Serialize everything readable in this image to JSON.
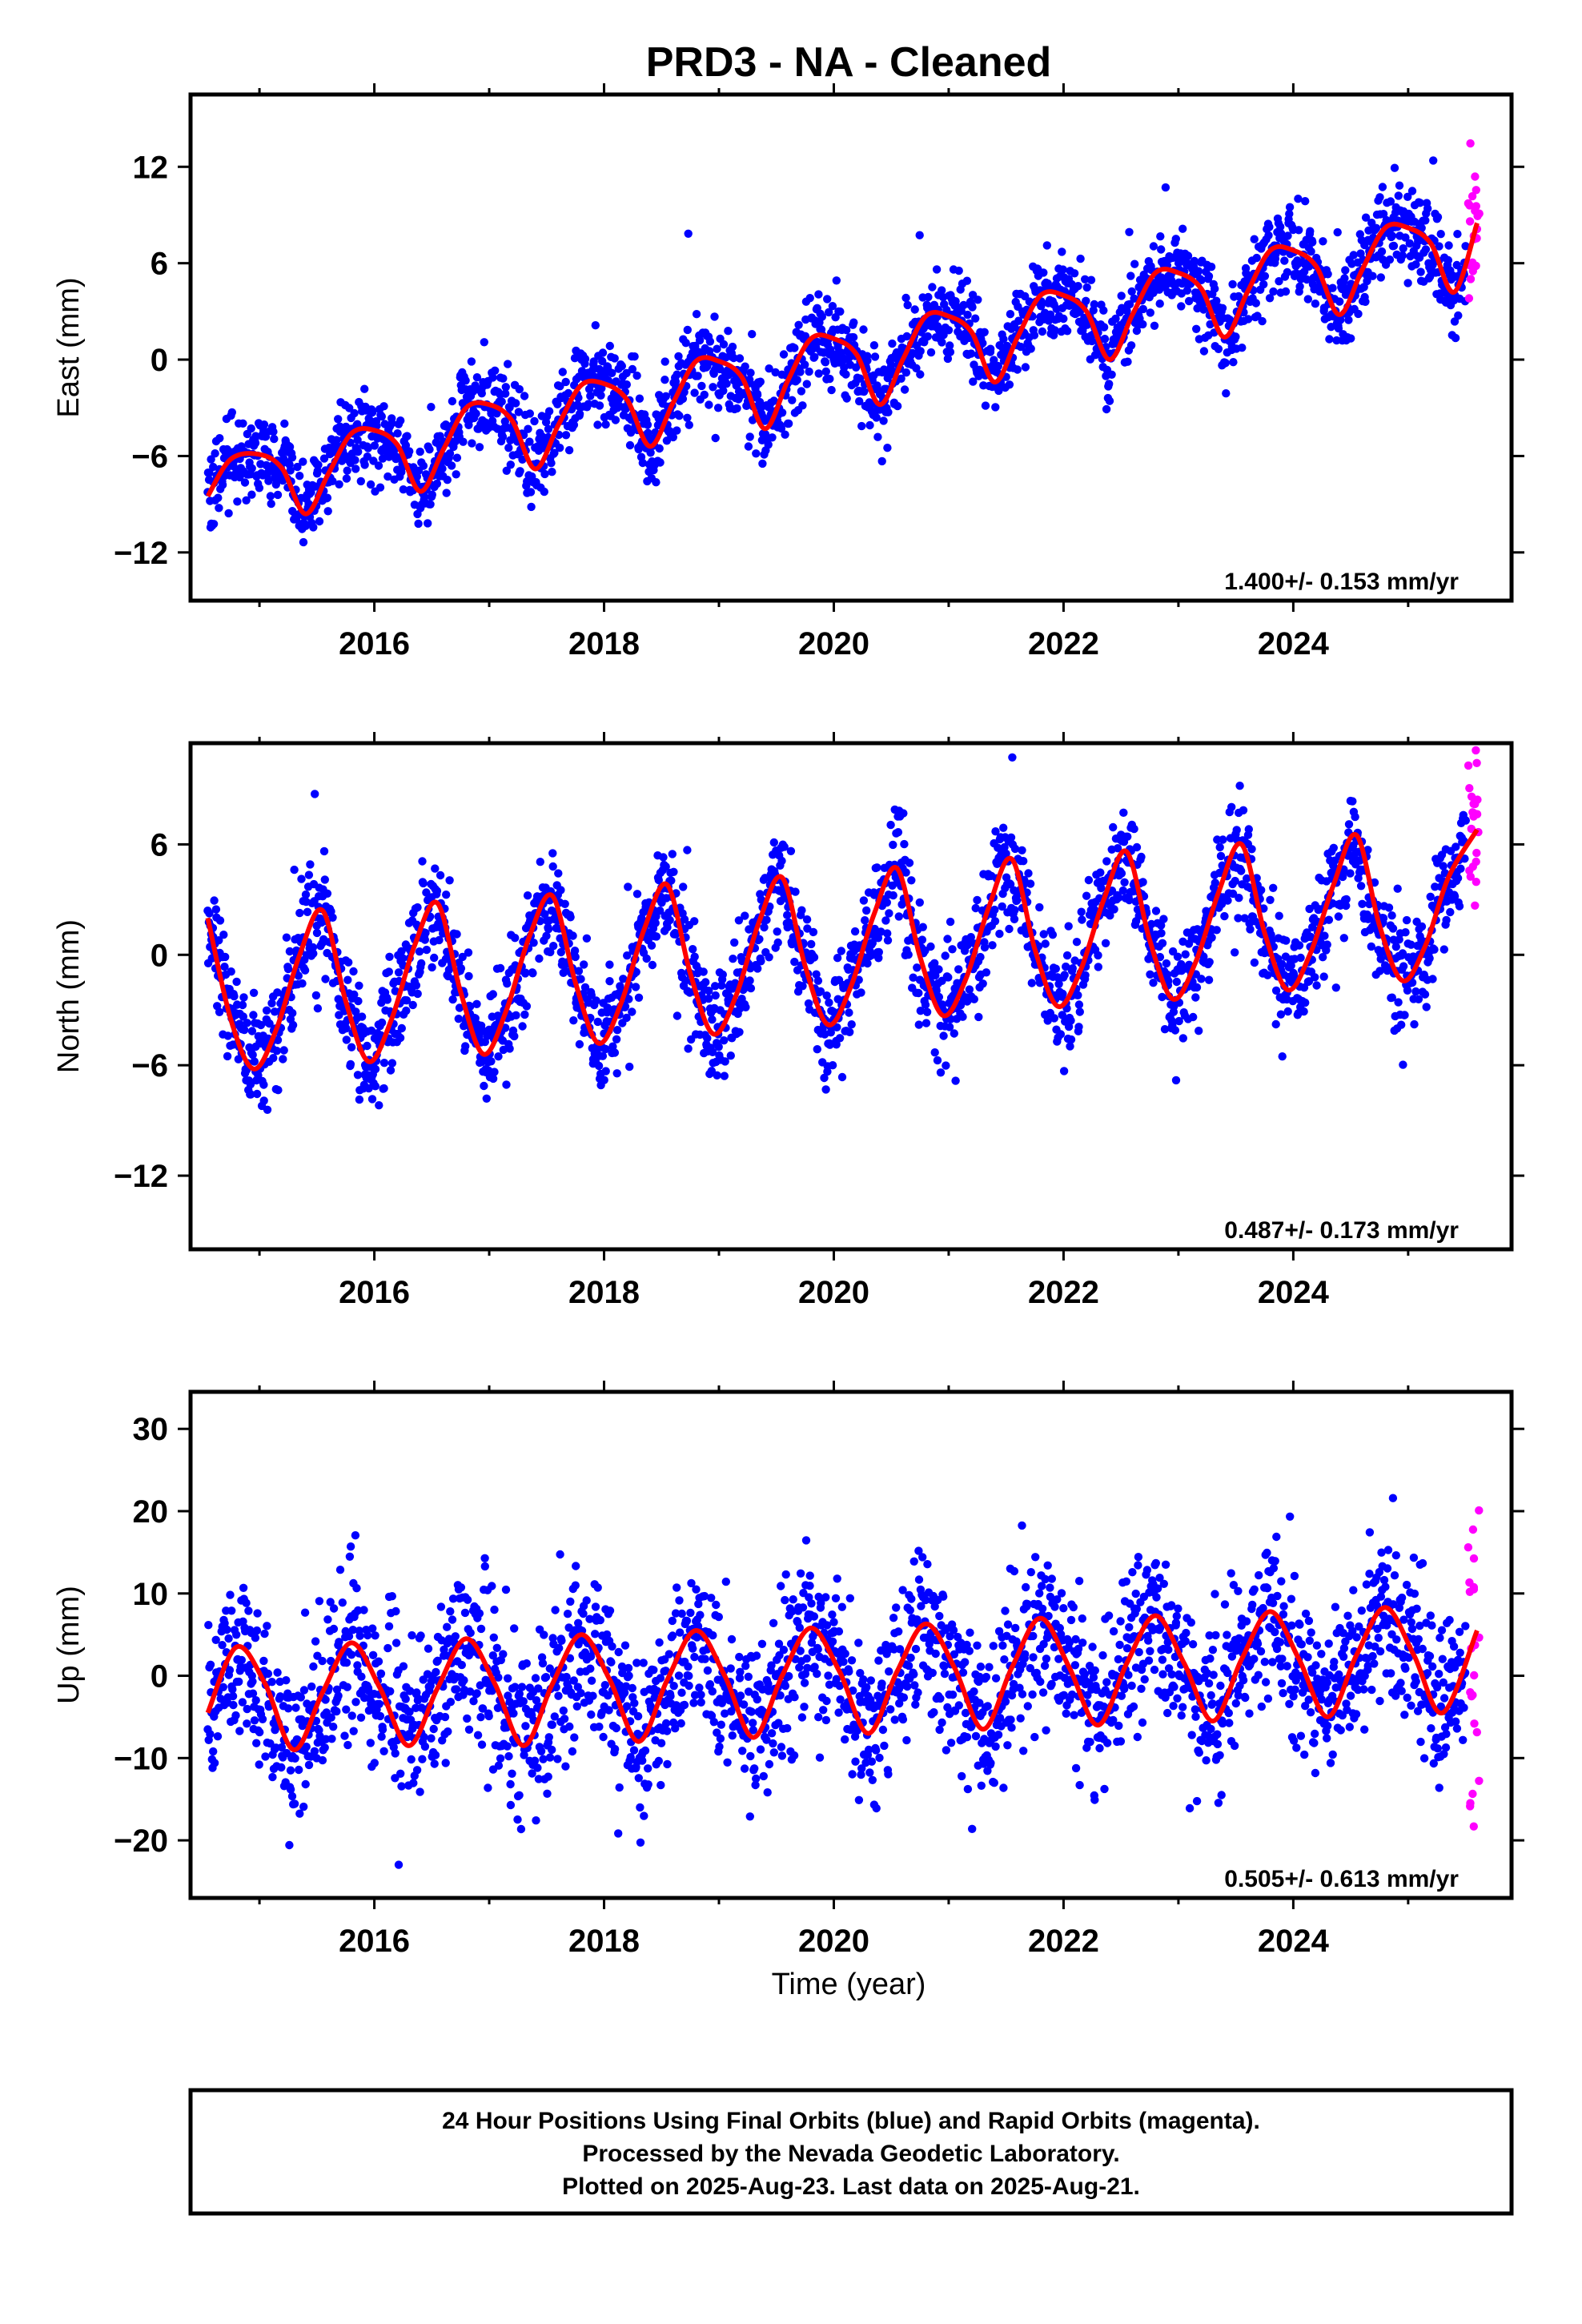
{
  "title": "PRD3  - NA - Cleaned",
  "xlabel": "Time (year)",
  "footer": {
    "line1": "24 Hour Positions Using Final Orbits (blue) and Rapid Orbits (magenta).",
    "line2": "Processed by the Nevada Geodetic Laboratory.",
    "line3": "Plotted on 2025-Aug-23. Last data on 2025-Aug-21."
  },
  "colors": {
    "final": "#0000ff",
    "rapid": "#ff00ff",
    "fit": "#ff0000",
    "frame": "#000000"
  },
  "chart_data": [
    {
      "type": "scatter",
      "ylabel": "East (mm)",
      "xlim": [
        2014.4,
        2025.9
      ],
      "ylim": [
        -15,
        16.5
      ],
      "xticks": [
        2016,
        2018,
        2020,
        2022,
        2024
      ],
      "xticklabels": [
        "2016",
        "2018",
        "2020",
        "2022",
        "2024"
      ],
      "yticks": [
        -12,
        -6,
        0,
        6,
        12
      ],
      "yticklabels": [
        "−12",
        "−6",
        "0",
        "6",
        "12"
      ],
      "rate_label": "1.400+/- 0.153 mm/yr",
      "grid": false,
      "series": [
        {
          "role": "model-fit",
          "x": [
            2014.55,
            2014.75,
            2015.0,
            2015.2,
            2015.4,
            2015.6,
            2015.8,
            2016.0,
            2016.2,
            2016.4,
            2016.6,
            2016.8,
            2017.0,
            2017.2,
            2017.4,
            2017.6,
            2017.8,
            2018.0,
            2018.2,
            2018.4,
            2018.6,
            2018.8,
            2019.0,
            2019.2,
            2019.4,
            2019.6,
            2019.8,
            2020.0,
            2020.2,
            2020.4,
            2020.6,
            2020.8,
            2021.0,
            2021.2,
            2021.4,
            2021.6,
            2021.8,
            2022.0,
            2022.2,
            2022.4,
            2022.6,
            2022.8,
            2023.0,
            2023.2,
            2023.4,
            2023.6,
            2023.8,
            2024.0,
            2024.2,
            2024.4,
            2024.6,
            2024.8,
            2025.0,
            2025.2,
            2025.4,
            2025.6
          ],
          "y": [
            -8.5,
            -6.2,
            -5.9,
            -6.8,
            -9.6,
            -7.1,
            -4.6,
            -4.4,
            -5.3,
            -8.2,
            -5.6,
            -3.0,
            -2.8,
            -3.8,
            -6.8,
            -4.1,
            -1.6,
            -1.5,
            -2.5,
            -5.4,
            -2.7,
            -0.1,
            -0.1,
            -1.1,
            -4.3,
            -1.3,
            1.3,
            1.3,
            0.3,
            -2.8,
            0.0,
            2.7,
            2.7,
            1.7,
            -1.4,
            1.4,
            4.0,
            4.0,
            3.0,
            0.0,
            2.8,
            5.4,
            5.4,
            4.4,
            1.4,
            4.2,
            6.8,
            6.8,
            5.8,
            2.8,
            5.6,
            8.2,
            8.2,
            7.2,
            4.2,
            8.5
          ]
        }
      ]
    },
    {
      "type": "scatter",
      "ylabel": "North (mm)",
      "xlim": [
        2014.4,
        2025.9
      ],
      "ylim": [
        -16,
        11.5
      ],
      "xticks": [
        2016,
        2018,
        2020,
        2022,
        2024
      ],
      "xticklabels": [
        "2016",
        "2018",
        "2020",
        "2022",
        "2024"
      ],
      "yticks": [
        -12,
        -6,
        0,
        6
      ],
      "yticklabels": [
        "−12",
        "−6",
        "0",
        "6"
      ],
      "rate_label": "0.487+/- 0.173 mm/yr",
      "grid": false,
      "series": [
        {
          "role": "model-fit",
          "x": [
            2014.55,
            2014.75,
            2014.95,
            2015.15,
            2015.35,
            2015.55,
            2015.75,
            2015.95,
            2016.15,
            2016.35,
            2016.55,
            2016.75,
            2016.95,
            2017.15,
            2017.35,
            2017.55,
            2017.75,
            2017.95,
            2018.15,
            2018.35,
            2018.55,
            2018.75,
            2018.95,
            2019.15,
            2019.35,
            2019.55,
            2019.75,
            2019.95,
            2020.15,
            2020.35,
            2020.55,
            2020.75,
            2020.95,
            2021.15,
            2021.35,
            2021.55,
            2021.75,
            2021.95,
            2022.15,
            2022.35,
            2022.55,
            2022.75,
            2022.95,
            2023.15,
            2023.35,
            2023.55,
            2023.75,
            2023.95,
            2024.15,
            2024.35,
            2024.55,
            2024.75,
            2024.95,
            2025.15,
            2025.35,
            2025.6
          ],
          "y": [
            2.0,
            -3.5,
            -6.2,
            -4.0,
            0.0,
            2.4,
            -2.5,
            -5.8,
            -3.5,
            0.5,
            2.8,
            -2.0,
            -5.4,
            -3.0,
            1.0,
            3.2,
            -1.5,
            -4.8,
            -2.6,
            1.4,
            3.8,
            -1.0,
            -4.3,
            -2.2,
            1.8,
            4.2,
            -0.6,
            -3.8,
            -1.7,
            2.2,
            4.7,
            -0.1,
            -3.3,
            -1.3,
            2.6,
            5.2,
            0.3,
            -2.8,
            -0.8,
            3.0,
            5.6,
            0.8,
            -2.4,
            -0.4,
            3.4,
            6.0,
            1.2,
            -1.9,
            0.1,
            3.8,
            6.5,
            1.6,
            -1.4,
            0.5,
            4.2,
            6.8
          ]
        }
      ]
    },
    {
      "type": "scatter",
      "ylabel": "Up (mm)",
      "xlim": [
        2014.4,
        2025.9
      ],
      "ylim": [
        -27,
        34.5
      ],
      "xticks": [
        2016,
        2018,
        2020,
        2022,
        2024
      ],
      "xticklabels": [
        "2016",
        "2018",
        "2020",
        "2022",
        "2024"
      ],
      "yticks": [
        -20,
        -10,
        0,
        10,
        20,
        30
      ],
      "yticklabels": [
        "−20",
        "−10",
        "0",
        "10",
        "20",
        "30"
      ],
      "rate_label": "0.505+/- 0.613 mm/yr",
      "grid": false,
      "series": [
        {
          "role": "model-fit",
          "x": [
            2014.55,
            2014.8,
            2015.05,
            2015.3,
            2015.55,
            2015.8,
            2016.05,
            2016.3,
            2016.55,
            2016.8,
            2017.05,
            2017.3,
            2017.55,
            2017.8,
            2018.05,
            2018.3,
            2018.55,
            2018.8,
            2019.05,
            2019.3,
            2019.55,
            2019.8,
            2020.05,
            2020.3,
            2020.55,
            2020.8,
            2021.05,
            2021.3,
            2021.55,
            2021.8,
            2022.05,
            2022.3,
            2022.55,
            2022.8,
            2023.05,
            2023.3,
            2023.55,
            2023.8,
            2024.05,
            2024.3,
            2024.55,
            2024.8,
            2025.05,
            2025.3,
            2025.6
          ],
          "y": [
            -4.5,
            3.5,
            -1.0,
            -9.0,
            -2.0,
            4.0,
            -1.5,
            -8.5,
            -1.5,
            4.5,
            -1.0,
            -8.5,
            -1.0,
            5.0,
            -0.5,
            -8.0,
            -0.5,
            5.5,
            0.0,
            -7.5,
            0.0,
            5.8,
            0.5,
            -7.0,
            0.5,
            6.3,
            1.0,
            -6.5,
            1.0,
            7.0,
            1.0,
            -6.0,
            1.5,
            7.3,
            1.5,
            -5.5,
            2.0,
            7.8,
            2.0,
            -5.0,
            2.5,
            8.3,
            2.5,
            -4.5,
            5.5
          ]
        }
      ]
    }
  ]
}
